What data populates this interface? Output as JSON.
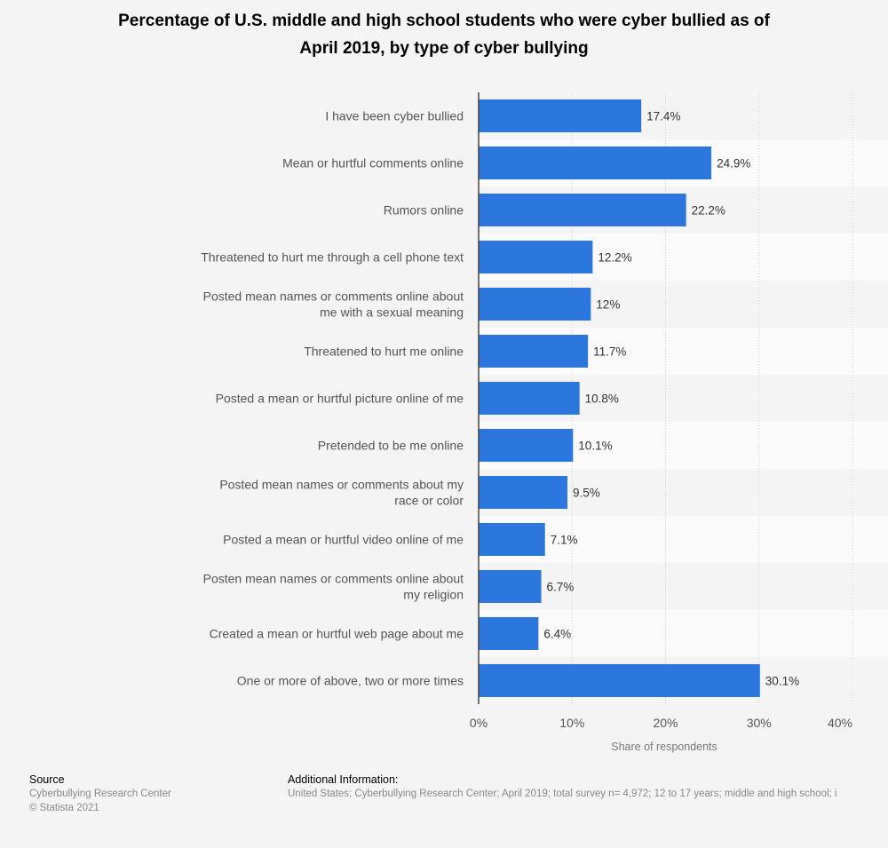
{
  "header": {
    "title_line1": "Percentage of U.S. middle and high school students who were cyber bullied as of",
    "title_line2": "April 2019, by type of cyber bullying"
  },
  "chart_data": {
    "type": "bar",
    "orientation": "horizontal",
    "title": "Percentage of U.S. middle and high school students who were cyber bullied as of April 2019, by type of cyber bullying",
    "categories": [
      [
        "I have been cyber bullied"
      ],
      [
        "Mean or hurtful comments online"
      ],
      [
        "Rumors online"
      ],
      [
        "Threatened to hurt me through a cell phone text"
      ],
      [
        "Posted mean names or comments online about",
        "me with a sexual meaning"
      ],
      [
        "Threatened to hurt me online"
      ],
      [
        "Posted a mean or hurtful picture online of me"
      ],
      [
        "Pretended to be me online"
      ],
      [
        "Posted mean names or comments about my",
        "race or color"
      ],
      [
        "Posted a mean or hurtful video online of me"
      ],
      [
        "Posten mean names or comments online about",
        "my religion"
      ],
      [
        "Created a mean or hurtful web page about me"
      ],
      [
        "One or more of above, two or more times"
      ]
    ],
    "values": [
      17.4,
      24.9,
      22.2,
      12.2,
      12,
      11.7,
      10.8,
      10.1,
      9.5,
      7.1,
      6.7,
      6.4,
      30.1
    ],
    "value_labels": [
      "17.4%",
      "24.9%",
      "22.2%",
      "12.2%",
      "12%",
      "11.7%",
      "10.8%",
      "10.1%",
      "9.5%",
      "7.1%",
      "6.7%",
      "6.4%",
      "30.1%"
    ],
    "xlim": [
      0,
      40
    ],
    "x_ticks": [
      0,
      10,
      20,
      30,
      40
    ],
    "x_tick_labels": [
      "0%",
      "10%",
      "20%",
      "30%",
      "40%"
    ],
    "xlabel": "Share of respondents",
    "bar_color": "#2b77de",
    "grid": true
  },
  "footer": {
    "source_heading": "Source",
    "source_line1": "Cyberbullying Research Center",
    "source_line2": "© Statista 2021",
    "info_heading": "Additional Information:",
    "info_text": "United States; Cyberbullying Research Center; April 2019; total survey n= 4,972; 12 to 17 years; middle and high school; i"
  }
}
